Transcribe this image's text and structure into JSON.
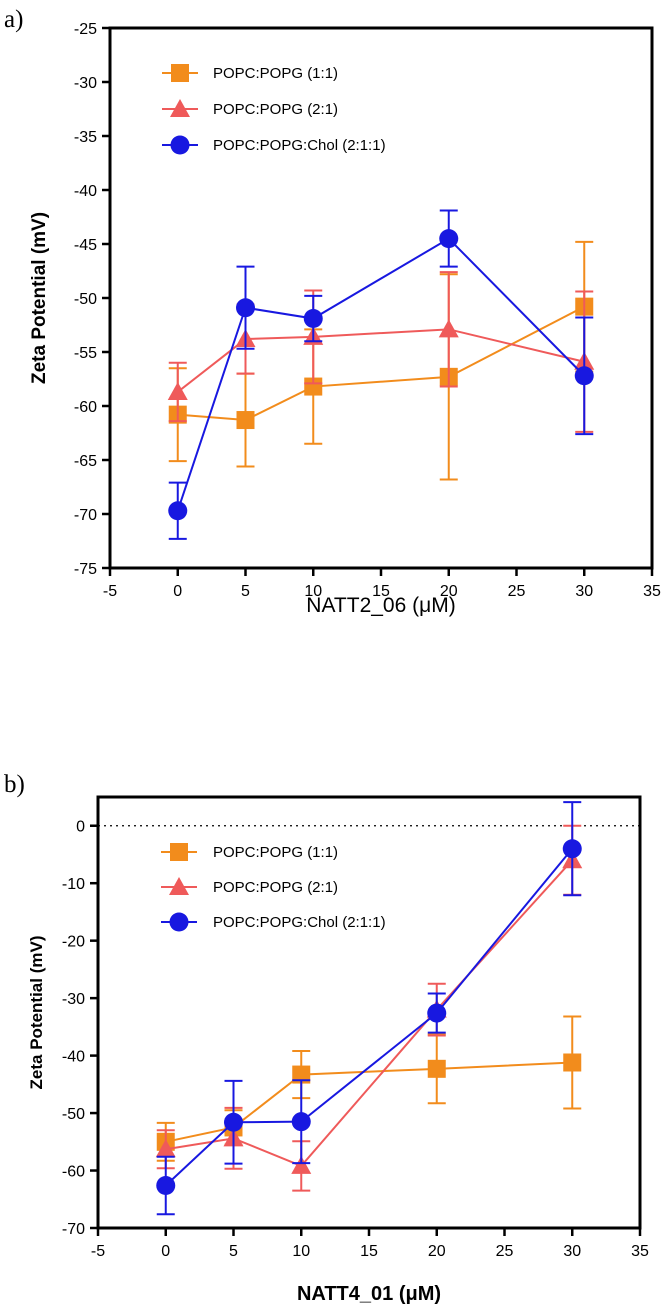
{
  "chart_data": [
    {
      "panel_label": "a)",
      "type": "line",
      "xlabel": "NATT2_06 (μM)",
      "xlabel_bold": false,
      "ylabel": "Zeta Potential (mV)",
      "xlim": [
        -5,
        35
      ],
      "ylim": [
        -75,
        -25
      ],
      "xticks": [
        -5,
        0,
        5,
        10,
        15,
        20,
        25,
        30,
        35
      ],
      "yticks": [
        -75,
        -70,
        -65,
        -60,
        -55,
        -50,
        -45,
        -40,
        -35,
        -30,
        -25
      ],
      "zero_line": false,
      "legend_position": "top-left",
      "x": [
        0,
        5,
        10,
        20,
        30
      ],
      "series": [
        {
          "name": "POPC:POPG (1:1)",
          "marker": "square",
          "color": "#f28c1c",
          "values": [
            -60.8,
            -61.3,
            -58.2,
            -57.3,
            -50.8
          ],
          "errors": [
            4.3,
            4.3,
            5.3,
            9.5,
            6.0
          ]
        },
        {
          "name": "POPC:POPG (2:1)",
          "marker": "triangle",
          "color": "#ef5a5a",
          "values": [
            -58.7,
            -53.8,
            -53.6,
            -52.9,
            -55.9
          ],
          "errors": [
            2.7,
            3.2,
            4.3,
            5.3,
            6.5
          ]
        },
        {
          "name": "POPC:POPG:Chol (2:1:1)",
          "marker": "circle",
          "color": "#1818e0",
          "values": [
            -69.7,
            -50.9,
            -51.9,
            -44.5,
            -57.2
          ],
          "errors": [
            2.6,
            3.8,
            2.1,
            2.6,
            5.4
          ]
        }
      ]
    },
    {
      "panel_label": "b)",
      "type": "line",
      "xlabel": "NATT4_01 (μM)",
      "xlabel_bold": true,
      "ylabel": "Zeta Potential (mV)",
      "xlim": [
        -5,
        35
      ],
      "ylim": [
        -70,
        5
      ],
      "xticks": [
        -5,
        0,
        5,
        10,
        15,
        20,
        25,
        30,
        35
      ],
      "yticks": [
        -70,
        -60,
        -50,
        -40,
        -30,
        -20,
        -10,
        0
      ],
      "zero_line": true,
      "legend_position": "top-left",
      "x": [
        0,
        5,
        10,
        20,
        30
      ],
      "series": [
        {
          "name": "POPC:POPG (1:1)",
          "marker": "square",
          "color": "#f28c1c",
          "values": [
            -55.0,
            -52.5,
            -43.3,
            -42.3,
            -41.2
          ],
          "errors": [
            3.3,
            3.0,
            4.1,
            6.0,
            8.0
          ]
        },
        {
          "name": "POPC:POPG (2:1)",
          "marker": "triangle",
          "color": "#ef5a5a",
          "values": [
            -56.3,
            -54.4,
            -59.2,
            -32.0,
            -6.0
          ],
          "errors": [
            3.3,
            5.3,
            4.3,
            4.5,
            6.0
          ]
        },
        {
          "name": "POPC:POPG:Chol (2:1:1)",
          "marker": "circle",
          "color": "#1818e0",
          "values": [
            -62.6,
            -51.6,
            -51.5,
            -32.6,
            -4.0
          ],
          "errors": [
            5.0,
            7.2,
            7.2,
            3.4,
            8.1
          ]
        }
      ]
    }
  ]
}
